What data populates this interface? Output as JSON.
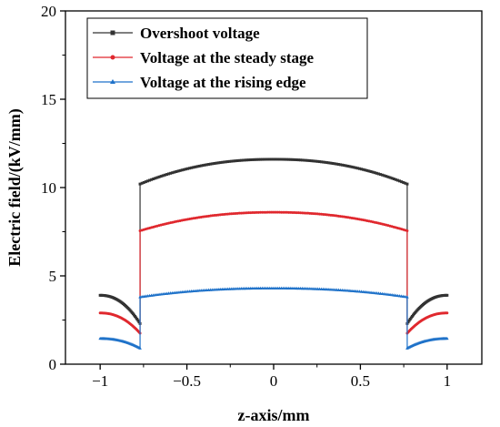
{
  "chart_data": {
    "type": "line",
    "xlabel": "z-axis/mm",
    "ylabel": "Electric field/(kV/mm)",
    "xlim": [
      -1.2,
      1.2
    ],
    "ylim": [
      0,
      20
    ],
    "x_ticks": [
      -1,
      -0.5,
      0,
      0.5,
      1
    ],
    "x_tick_labels": [
      "−1",
      "−0.5",
      "0",
      "0.5",
      "1"
    ],
    "y_ticks": [
      0,
      5,
      10,
      15,
      20
    ],
    "y_tick_labels": [
      "0",
      "5",
      "10",
      "15",
      "20"
    ],
    "grid": false,
    "legend_position": "top-left",
    "series": [
      {
        "name": "Overshoot voltage",
        "color": "#333333",
        "marker": "square",
        "outer_end": 3.9,
        "outer_inner": 2.3,
        "inner_edge": 10.2,
        "inner_center": 11.6
      },
      {
        "name": "Voltage at the steady stage",
        "color": "#e0282e",
        "marker": "circle",
        "outer_end": 2.9,
        "outer_inner": 1.75,
        "inner_edge": 7.55,
        "inner_center": 8.6
      },
      {
        "name": "Voltage at the rising edge",
        "color": "#1f72c9",
        "marker": "triangle",
        "outer_end": 1.45,
        "outer_inner": 0.9,
        "inner_edge": 3.8,
        "inner_center": 4.3
      }
    ],
    "interface_z": 0.77
  }
}
